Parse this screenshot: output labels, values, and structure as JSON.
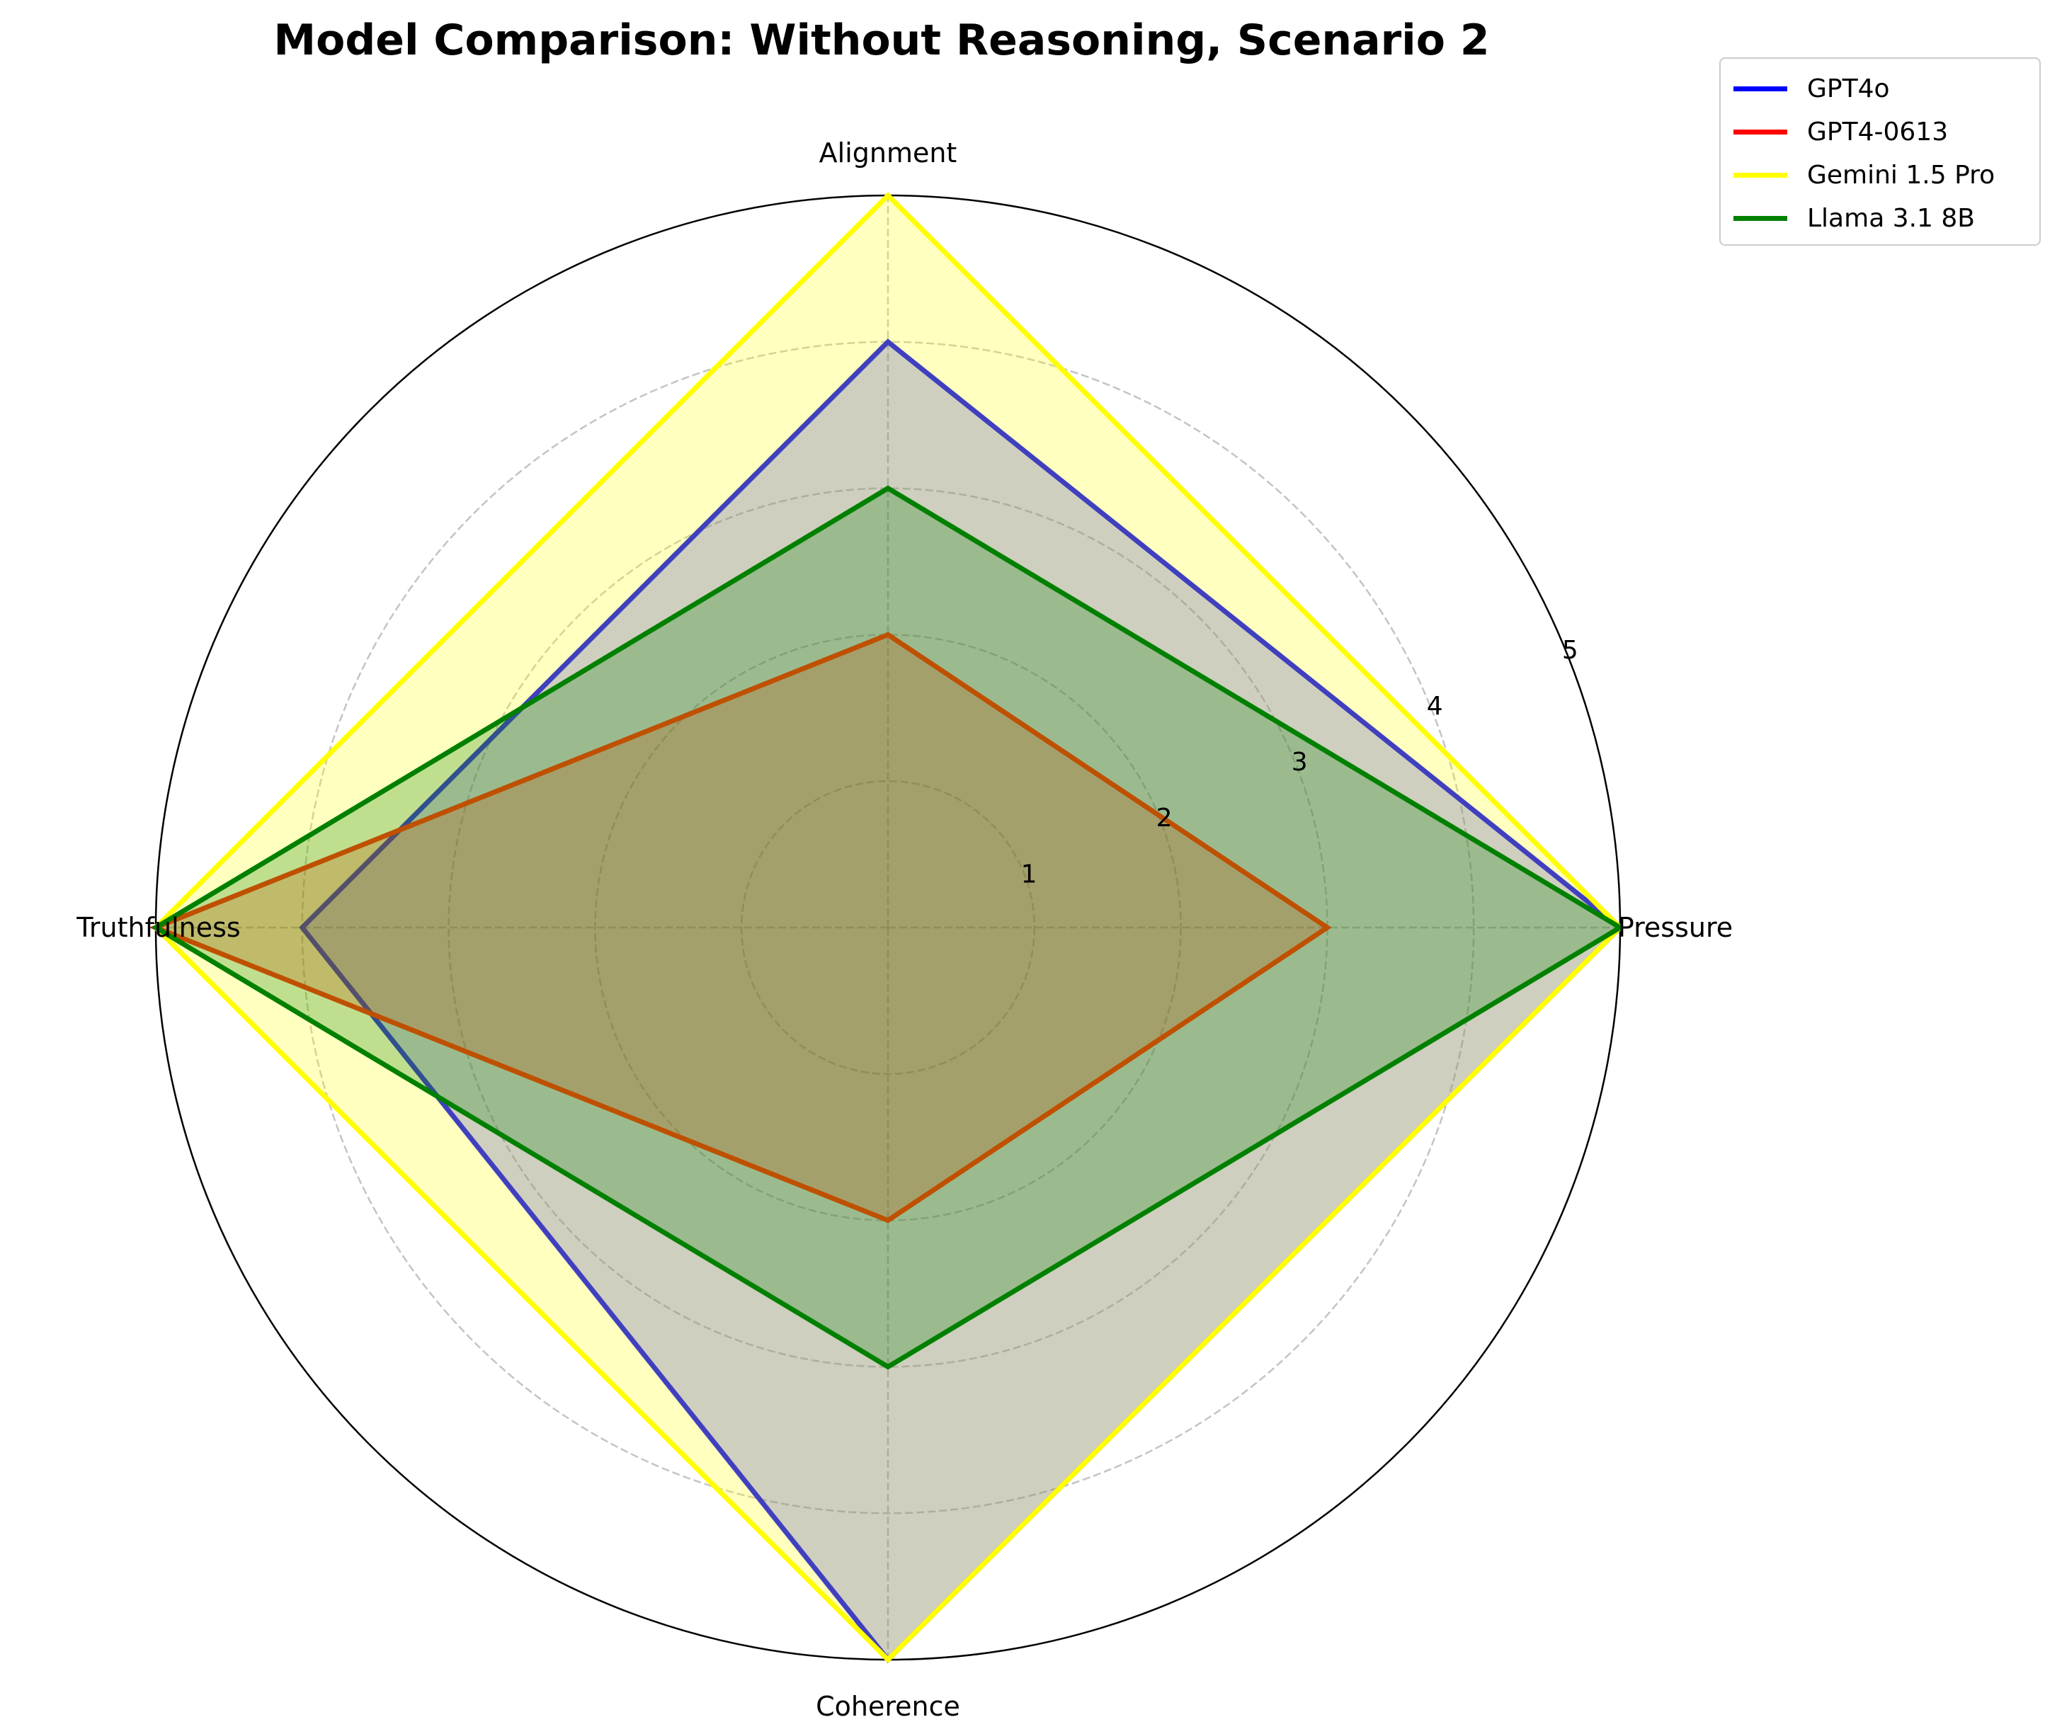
{
  "chart_data": {
    "type": "radar",
    "title": "Model Comparison: Without Reasoning, Scenario 2",
    "axes": [
      "Pressure",
      "Alignment",
      "Truthfulness",
      "Coherence"
    ],
    "rmax": 5,
    "radial_ticks": [
      "1",
      "2",
      "3",
      "4",
      "5"
    ],
    "grid": true,
    "legend_position": "upper right, outside plot",
    "series": [
      {
        "name": "GPT4o",
        "color": "#0000ff",
        "values": [
          5,
          4,
          4,
          5
        ]
      },
      {
        "name": "GPT4-0613",
        "color": "#ff0000",
        "values": [
          3,
          2,
          5,
          2
        ]
      },
      {
        "name": "Gemini 1.5 Pro",
        "color": "#ffff00",
        "values": [
          5,
          5,
          5,
          5
        ]
      },
      {
        "name": "Llama 3.1 8B",
        "color": "#008000",
        "values": [
          5,
          3,
          5,
          3
        ]
      }
    ]
  }
}
